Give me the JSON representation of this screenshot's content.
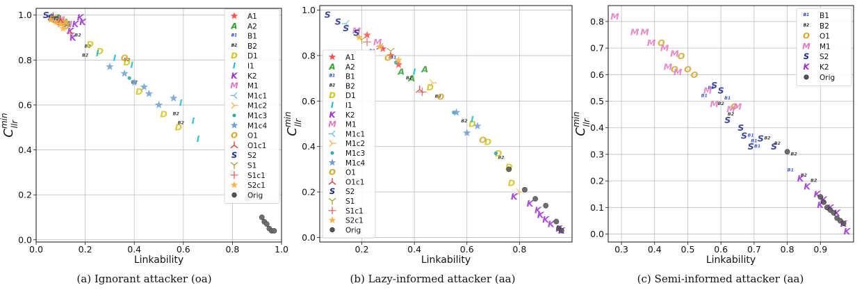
{
  "styles": {
    "A1": {
      "sym": "star",
      "color": "#ff4d4d"
    },
    "A2": {
      "sym": "A",
      "color": "#2ca02c"
    },
    "B1": {
      "sym": "B1",
      "color": "#1f3fd0"
    },
    "B2": {
      "sym": "B2",
      "color": "#222222"
    },
    "D1": {
      "sym": "D",
      "color": "#d4c21a"
    },
    "I1": {
      "sym": "I",
      "color": "#17becf"
    },
    "K2": {
      "sym": "K",
      "color": "#9a2fd0"
    },
    "M1": {
      "sym": "M",
      "color": "#e377c2"
    },
    "M1c1": {
      "sym": "tri_left",
      "color": "#5fb6e6"
    },
    "M1c2": {
      "sym": "tri_right",
      "color": "#ffaa44"
    },
    "M1c3": {
      "sym": "dot",
      "color": "#2ca8a8"
    },
    "M1c4": {
      "sym": "star",
      "color": "#6e9fd1"
    },
    "O1": {
      "sym": "O",
      "color": "#d4a52a"
    },
    "O1c1": {
      "sym": "tri_up",
      "color": "#d62728"
    },
    "S2": {
      "sym": "S",
      "color": "#1b2a8a"
    },
    "S1": {
      "sym": "tri_down",
      "color": "#9c9c20"
    },
    "S1c1": {
      "sym": "plus",
      "color": "#e15759"
    },
    "S2c1": {
      "sym": "star",
      "color": "#ffb347"
    },
    "Orig": {
      "sym": "circle",
      "color": "#555555"
    }
  },
  "chart_data": [
    {
      "type": "scatter",
      "caption": "(a) Ignorant attacker (oa)",
      "xlabel": "Linkability",
      "ylabel": "C",
      "ylabel_sup": "min",
      "ylabel_sub": "llr",
      "xlim": [
        0.0,
        1.0
      ],
      "ylim": [
        -0.01,
        1.03
      ],
      "xticks": [
        "0.0",
        "0.2",
        "0.4",
        "0.6",
        "0.8",
        "1.0"
      ],
      "xtick_values": [
        0.0,
        0.2,
        0.4,
        0.6,
        0.8,
        1.0
      ],
      "yticks": [
        "0.0",
        "0.2",
        "0.4",
        "0.6",
        "0.8",
        "1.0"
      ],
      "ytick_values": [
        0.0,
        0.2,
        0.4,
        0.6,
        0.8,
        1.0
      ],
      "grid": true,
      "legend": "right",
      "legend_entries": [
        "A1",
        "A2",
        "B1",
        "B2",
        "D1",
        "I1",
        "K2",
        "M1",
        "M1c1",
        "M1c2",
        "M1c3",
        "M1c4",
        "O1",
        "O1c1",
        "S2",
        "S1",
        "S1c1",
        "S2c1",
        "Orig"
      ],
      "series": [
        {
          "name": "A1",
          "x": [
            0.06,
            0.09,
            0.11
          ],
          "y": [
            0.99,
            0.98,
            0.97
          ]
        },
        {
          "name": "A2",
          "x": [
            0.12,
            0.13,
            0.09
          ],
          "y": [
            0.97,
            0.96,
            0.99
          ]
        },
        {
          "name": "B1",
          "x": [
            0.07,
            0.1
          ],
          "y": [
            0.98,
            0.97
          ]
        },
        {
          "name": "B2",
          "x": [
            0.17,
            0.21,
            0.2,
            0.37,
            0.4,
            0.57,
            0.59
          ],
          "y": [
            0.91,
            0.86,
            0.82,
            0.8,
            0.7,
            0.56,
            0.52
          ]
        },
        {
          "name": "D1",
          "x": [
            0.22,
            0.26,
            0.37,
            0.42,
            0.52,
            0.58
          ],
          "y": [
            0.87,
            0.84,
            0.79,
            0.66,
            0.56,
            0.5
          ]
        },
        {
          "name": "I1",
          "x": [
            0.25,
            0.32,
            0.39,
            0.59,
            0.64,
            0.66
          ],
          "y": [
            0.83,
            0.81,
            0.78,
            0.61,
            0.53,
            0.45
          ]
        },
        {
          "name": "K2",
          "x": [
            0.14,
            0.16,
            0.18,
            0.19,
            0.15
          ],
          "y": [
            0.93,
            0.96,
            0.99,
            0.97,
            0.9
          ]
        },
        {
          "name": "M1",
          "x": [
            0.1,
            0.13
          ],
          "y": [
            0.98,
            0.96
          ]
        },
        {
          "name": "M1c1",
          "x": [
            0.05,
            0.06,
            0.07
          ],
          "y": [
            0.99,
            1.0,
            0.98
          ]
        },
        {
          "name": "M1c2",
          "x": [
            0.08,
            0.1
          ],
          "y": [
            0.98,
            0.96
          ]
        },
        {
          "name": "M1c3",
          "x": [
            0.09,
            0.38
          ],
          "y": [
            0.98,
            0.72
          ]
        },
        {
          "name": "M1c4",
          "x": [
            0.3,
            0.36,
            0.4,
            0.44,
            0.46,
            0.5,
            0.56
          ],
          "y": [
            0.77,
            0.74,
            0.7,
            0.68,
            0.65,
            0.6,
            0.63
          ]
        },
        {
          "name": "O1",
          "x": [
            0.07,
            0.09,
            0.12,
            0.36
          ],
          "y": [
            0.98,
            0.97,
            0.95,
            0.81
          ]
        },
        {
          "name": "O1c1",
          "x": [
            0.07,
            0.1
          ],
          "y": [
            0.99,
            0.98
          ]
        },
        {
          "name": "S2",
          "x": [
            0.04,
            0.06,
            0.08
          ],
          "y": [
            1.0,
            0.99,
            0.98
          ]
        },
        {
          "name": "S1",
          "x": [
            0.07,
            0.1
          ],
          "y": [
            0.99,
            0.97
          ]
        },
        {
          "name": "S1c1",
          "x": [
            0.14,
            0.09
          ],
          "y": [
            0.92,
            0.97
          ]
        },
        {
          "name": "S2c1",
          "x": [
            0.06,
            0.08,
            0.1,
            0.11,
            0.12
          ],
          "y": [
            0.98,
            0.97,
            0.96,
            0.94,
            0.97
          ]
        },
        {
          "name": "Orig",
          "x": [
            0.8,
            0.86,
            0.88,
            0.92,
            0.93,
            0.94,
            0.95,
            0.96,
            0.97
          ],
          "y": [
            0.3,
            0.18,
            0.2,
            0.1,
            0.08,
            0.07,
            0.05,
            0.04,
            0.04
          ]
        }
      ]
    },
    {
      "type": "scatter",
      "caption": "(b) Lazy-informed attacker (aa)",
      "xlabel": "Linkability",
      "ylabel": "C",
      "ylabel_sup": "min",
      "ylabel_sub": "llr",
      "xlim": [
        0.04,
        1.0
      ],
      "ylim": [
        -0.02,
        1.02
      ],
      "xticks": [
        "0.2",
        "0.4",
        "0.6",
        "0.8"
      ],
      "xtick_values": [
        0.2,
        0.4,
        0.6,
        0.8
      ],
      "yticks": [
        "0.0",
        "0.2",
        "0.4",
        "0.6",
        "0.8",
        "1.0"
      ],
      "ytick_values": [
        0.0,
        0.2,
        0.4,
        0.6,
        0.8,
        1.0
      ],
      "grid": true,
      "legend": "left",
      "legend_entries": [
        "A1",
        "A2",
        "B1",
        "B2",
        "D1",
        "I1",
        "K2",
        "M1",
        "M1c1",
        "M1c2",
        "M1c3",
        "M1c4",
        "O1",
        "O1c1",
        "S2",
        "S1",
        "S1c1",
        "S2c1",
        "Orig"
      ],
      "series": [
        {
          "name": "A1",
          "x": [
            0.22,
            0.28,
            0.31,
            0.34
          ],
          "y": [
            0.89,
            0.83,
            0.8,
            0.76
          ]
        },
        {
          "name": "A2",
          "x": [
            0.35,
            0.39,
            0.44
          ],
          "y": [
            0.73,
            0.7,
            0.74
          ]
        },
        {
          "name": "B1",
          "x": [
            0.24,
            0.32
          ],
          "y": [
            0.82,
            0.79
          ]
        },
        {
          "name": "B2",
          "x": [
            0.38,
            0.49,
            0.59,
            0.73
          ],
          "y": [
            0.7,
            0.62,
            0.51,
            0.35
          ]
        },
        {
          "name": "D1",
          "x": [
            0.46,
            0.62,
            0.68,
            0.72,
            0.76,
            0.77
          ],
          "y": [
            0.66,
            0.5,
            0.42,
            0.37,
            0.31,
            0.24
          ]
        },
        {
          "name": "I1",
          "x": [
            0.4,
            0.62
          ],
          "y": [
            0.73,
            0.52
          ]
        },
        {
          "name": "K2",
          "x": [
            0.78,
            0.84,
            0.87,
            0.88,
            0.9,
            0.92,
            0.95,
            0.96
          ],
          "y": [
            0.18,
            0.15,
            0.12,
            0.1,
            0.08,
            0.06,
            0.04,
            0.03
          ]
        },
        {
          "name": "M1",
          "x": [
            0.18,
            0.26
          ],
          "y": [
            0.91,
            0.86
          ]
        },
        {
          "name": "M1c1",
          "x": [
            0.14,
            0.27
          ],
          "y": [
            0.94,
            0.84
          ]
        },
        {
          "name": "M1c2",
          "x": [
            0.47,
            0.8
          ],
          "y": [
            0.68,
            0.2
          ]
        },
        {
          "name": "M1c3",
          "x": [
            0.33,
            0.55,
            0.71
          ],
          "y": [
            0.77,
            0.55,
            0.37
          ]
        },
        {
          "name": "M1c4",
          "x": [
            0.56,
            0.6,
            0.64
          ],
          "y": [
            0.55,
            0.46,
            0.49
          ]
        },
        {
          "name": "O1",
          "x": [
            0.3,
            0.5,
            0.66
          ],
          "y": [
            0.79,
            0.62,
            0.43
          ]
        },
        {
          "name": "O1c1",
          "x": [
            0.27,
            0.42
          ],
          "y": [
            0.84,
            0.65
          ]
        },
        {
          "name": "S2",
          "x": [
            0.07,
            0.11,
            0.14,
            0.18
          ],
          "y": [
            0.98,
            0.95,
            0.92,
            0.9
          ]
        },
        {
          "name": "S1",
          "x": [
            0.2,
            0.31
          ],
          "y": [
            0.87,
            0.82
          ]
        },
        {
          "name": "S1c1",
          "x": [
            0.22,
            0.43
          ],
          "y": [
            0.86,
            0.64
          ]
        },
        {
          "name": "S2c1",
          "x": [
            0.19,
            0.27,
            0.34
          ],
          "y": [
            0.88,
            0.84,
            0.78
          ]
        },
        {
          "name": "Orig",
          "x": [
            0.76,
            0.82,
            0.86,
            0.9,
            0.94,
            0.95,
            0.96
          ],
          "y": [
            0.3,
            0.21,
            0.17,
            0.14,
            0.07,
            0.04,
            0.03
          ]
        }
      ]
    },
    {
      "type": "scatter",
      "caption": "(c) Semi-informed attacker (aa)",
      "xlabel": "Linkability",
      "ylabel": "C",
      "ylabel_sup": "min",
      "ylabel_sub": "llr",
      "xlim": [
        0.26,
        1.0
      ],
      "ylim": [
        -0.03,
        0.86
      ],
      "xticks": [
        "0.3",
        "0.4",
        "0.5",
        "0.6",
        "0.7",
        "0.8",
        "0.9"
      ],
      "xtick_values": [
        0.3,
        0.4,
        0.5,
        0.6,
        0.7,
        0.8,
        0.9
      ],
      "yticks": [
        "0.0",
        "0.1",
        "0.2",
        "0.3",
        "0.4",
        "0.5",
        "0.6",
        "0.7",
        "0.8"
      ],
      "ytick_values": [
        0.0,
        0.1,
        0.2,
        0.3,
        0.4,
        0.5,
        0.6,
        0.7,
        0.8
      ],
      "grid": true,
      "legend": "top-right",
      "legend_entries": [
        "B1",
        "B2",
        "O1",
        "M1",
        "S2",
        "K2",
        "Orig"
      ],
      "series": [
        {
          "name": "B1",
          "x": [
            0.55,
            0.57,
            0.62,
            0.69,
            0.7,
            0.71,
            0.81
          ],
          "y": [
            0.52,
            0.55,
            0.51,
            0.37,
            0.35,
            0.33,
            0.24
          ]
        },
        {
          "name": "B2",
          "x": [
            0.6,
            0.63,
            0.74,
            0.77,
            0.82,
            0.85,
            0.88
          ],
          "y": [
            0.49,
            0.45,
            0.36,
            0.34,
            0.3,
            0.22,
            0.2
          ]
        },
        {
          "name": "O1",
          "x": [
            0.42,
            0.46,
            0.48,
            0.5,
            0.52,
            0.64
          ],
          "y": [
            0.72,
            0.62,
            0.67,
            0.62,
            0.6,
            0.48
          ]
        },
        {
          "name": "M1",
          "x": [
            0.28,
            0.34,
            0.37,
            0.39,
            0.43,
            0.44,
            0.46,
            0.47,
            0.56,
            0.58,
            0.63,
            0.65
          ],
          "y": [
            0.82,
            0.76,
            0.76,
            0.72,
            0.7,
            0.63,
            0.68,
            0.61,
            0.54,
            0.49,
            0.47,
            0.48
          ]
        },
        {
          "name": "S2",
          "x": [
            0.58,
            0.6,
            0.62,
            0.66,
            0.67,
            0.69,
            0.72,
            0.76
          ],
          "y": [
            0.56,
            0.54,
            0.43,
            0.4,
            0.37,
            0.33,
            0.36,
            0.33
          ]
        },
        {
          "name": "K2",
          "x": [
            0.84,
            0.86,
            0.89,
            0.9,
            0.91,
            0.93,
            0.95,
            0.97,
            0.98
          ],
          "y": [
            0.21,
            0.18,
            0.15,
            0.11,
            0.13,
            0.1,
            0.08,
            0.04,
            0.01
          ]
        },
        {
          "name": "Orig",
          "x": [
            0.8,
            0.9,
            0.91,
            0.92,
            0.93,
            0.94,
            0.95,
            0.96,
            0.97
          ],
          "y": [
            0.31,
            0.14,
            0.12,
            0.1,
            0.09,
            0.08,
            0.06,
            0.05,
            0.04
          ]
        }
      ]
    }
  ]
}
